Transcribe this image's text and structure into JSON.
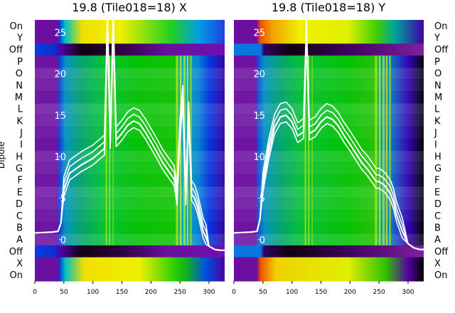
{
  "chart_data": [
    {
      "type": "heatmap",
      "title": "19.8 (Tile018=18) X",
      "ylabel": "Dipole",
      "x_ticks": [
        0,
        50,
        100,
        150,
        200,
        250,
        300
      ],
      "x_range": [
        0,
        327
      ],
      "y_ticks": [
        0,
        5,
        10,
        15,
        20,
        25
      ],
      "y_range": [
        -5,
        26.5
      ],
      "dipole_labels": [
        "On",
        "Y",
        "Off",
        "P",
        "O",
        "N",
        "M",
        "L",
        "K",
        "J",
        "I",
        "H",
        "G",
        "F",
        "E",
        "D",
        "C",
        "B",
        "A",
        "Off",
        "X",
        "On"
      ],
      "overlay_line": {
        "x": [
          0,
          30,
          40,
          45,
          50,
          60,
          80,
          100,
          110,
          120,
          125,
          130,
          135,
          140,
          150,
          160,
          170,
          180,
          190,
          200,
          210,
          220,
          230,
          240,
          245,
          250,
          255,
          260,
          265,
          270,
          275,
          280,
          285,
          290,
          295,
          300,
          310,
          320,
          327
        ],
        "y": [
          0.8,
          0.9,
          1.0,
          2.0,
          6.0,
          8.0,
          9.0,
          9.8,
          10.4,
          11.0,
          26.0,
          11.8,
          26.0,
          12.0,
          12.8,
          13.8,
          14.3,
          14.0,
          13.0,
          11.8,
          10.6,
          9.3,
          8.3,
          7.3,
          5.0,
          13.0,
          17.0,
          5.0,
          15.0,
          5.5,
          5.0,
          4.0,
          2.5,
          1.0,
          0.2,
          -0.8,
          -1.2,
          -1.3,
          -1.3
        ]
      }
    },
    {
      "type": "heatmap",
      "title": "19.8 (Tile018=18) Y",
      "ylabel": "",
      "x_ticks": [
        0,
        50,
        100,
        150,
        200,
        250,
        300
      ],
      "x_range": [
        0,
        327
      ],
      "y_ticks": [
        0,
        5,
        10,
        15,
        20,
        25
      ],
      "y_range": [
        -5,
        26.5
      ],
      "dipole_labels": [
        "On",
        "Y",
        "Off",
        "P",
        "O",
        "N",
        "M",
        "L",
        "K",
        "J",
        "I",
        "H",
        "G",
        "F",
        "E",
        "D",
        "C",
        "B",
        "A",
        "Off",
        "X",
        "On"
      ],
      "overlay_line": {
        "x": [
          0,
          30,
          40,
          45,
          50,
          60,
          70,
          80,
          90,
          100,
          110,
          120,
          125,
          130,
          140,
          150,
          160,
          170,
          180,
          190,
          200,
          210,
          220,
          230,
          240,
          245,
          250,
          260,
          270,
          275,
          280,
          290,
          300,
          310,
          320,
          327
        ],
        "y": [
          0.8,
          0.9,
          1.0,
          2.5,
          6.5,
          10.5,
          13.5,
          14.8,
          15.0,
          14.2,
          12.5,
          13.0,
          25.0,
          12.8,
          13.2,
          14.2,
          14.8,
          14.5,
          13.7,
          12.5,
          11.5,
          10.4,
          9.3,
          8.5,
          7.5,
          7.0,
          7.0,
          6.5,
          5.5,
          4.5,
          3.0,
          1.0,
          -0.5,
          -1.0,
          -1.2,
          -1.2
        ]
      }
    }
  ]
}
